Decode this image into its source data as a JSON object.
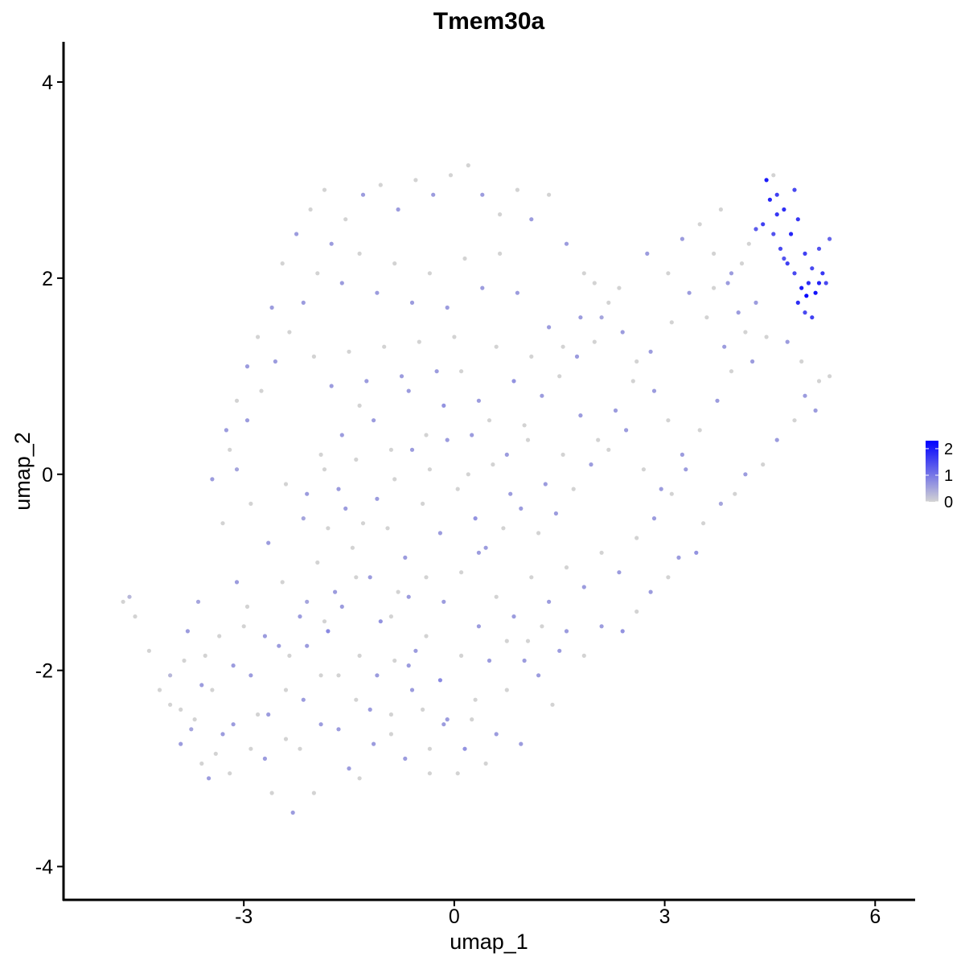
{
  "chart_data": {
    "type": "scatter",
    "title": "Tmem30a",
    "xlabel": "umap_1",
    "ylabel": "umap_2",
    "xlim": [
      -5.57,
      6.57
    ],
    "ylim": [
      -4.34,
      4.41
    ],
    "x_ticks": [
      -3,
      0,
      3,
      6
    ],
    "y_ticks": [
      -4,
      -2,
      0,
      2,
      4
    ],
    "x_tick_labels": [
      "-3",
      "0",
      "3",
      "6"
    ],
    "y_tick_labels": [
      "-4",
      "-2",
      "0",
      "2",
      "4"
    ],
    "grid": false,
    "legend": {
      "placement": "right",
      "type": "colorbar",
      "min": 0,
      "max": 2.3,
      "ticks": [
        0,
        1,
        2
      ],
      "tick_labels": [
        "0",
        "1",
        "2"
      ],
      "color_low": "#d3d3d3",
      "color_high": "#0000ff"
    },
    "point_color_low": "#d3d3d3",
    "point_color_high": "#0000ff",
    "note_expression": "expression 0 = grey; positive values shaded lilac to blue",
    "points": [
      [
        -4.72,
        -1.3,
        0
      ],
      [
        -4.63,
        -1.25,
        0.3
      ],
      [
        -4.55,
        -1.45,
        0
      ],
      [
        -4.35,
        -1.8,
        0
      ],
      [
        -4.2,
        -2.2,
        0
      ],
      [
        -4.05,
        -2.05,
        0.3
      ],
      [
        -3.9,
        -2.4,
        0
      ],
      [
        -3.75,
        -2.6,
        0.5
      ],
      [
        -3.6,
        -2.95,
        0
      ],
      [
        -3.5,
        -3.1,
        0.6
      ],
      [
        -3.8,
        -1.6,
        0.6
      ],
      [
        -3.65,
        -1.3,
        0.5
      ],
      [
        -3.55,
        -1.85,
        0
      ],
      [
        -3.45,
        -2.2,
        0
      ],
      [
        -3.3,
        -2.65,
        0.6
      ],
      [
        -3.2,
        -3.05,
        0
      ],
      [
        -3.1,
        -1.1,
        0.6
      ],
      [
        -3.0,
        -1.55,
        0
      ],
      [
        -2.9,
        -2.05,
        0.6
      ],
      [
        -2.8,
        -2.45,
        0
      ],
      [
        -2.7,
        -2.9,
        0.6
      ],
      [
        -2.6,
        -3.25,
        0
      ],
      [
        -2.5,
        -1.75,
        0.6
      ],
      [
        -2.4,
        -2.2,
        0
      ],
      [
        -2.3,
        -3.45,
        0.6
      ],
      [
        -2.2,
        -2.8,
        0
      ],
      [
        -2.1,
        -1.3,
        0.5
      ],
      [
        -2.0,
        -3.25,
        0
      ],
      [
        -1.9,
        -2.55,
        0.6
      ],
      [
        -1.8,
        -1.6,
        0.8
      ],
      [
        -1.65,
        -2.05,
        0
      ],
      [
        -1.5,
        -3.0,
        0.6
      ],
      [
        -1.4,
        -1.05,
        0
      ],
      [
        -1.35,
        -3.1,
        0
      ],
      [
        -1.2,
        -2.4,
        0.6
      ],
      [
        -1.05,
        -1.5,
        0.7
      ],
      [
        -0.9,
        -2.65,
        0
      ],
      [
        -0.8,
        -1.2,
        0
      ],
      [
        -0.7,
        -2.9,
        0.6
      ],
      [
        -0.55,
        -1.8,
        0.6
      ],
      [
        -0.45,
        -2.4,
        0
      ],
      [
        -0.35,
        -3.05,
        0
      ],
      [
        -0.2,
        -2.1,
        0.8
      ],
      [
        0.05,
        -3.05,
        0
      ],
      [
        0.15,
        -2.8,
        0.7
      ],
      [
        0.3,
        -2.3,
        0
      ],
      [
        0.45,
        -2.95,
        0
      ],
      [
        0.6,
        -2.65,
        0.6
      ],
      [
        0.75,
        -2.2,
        0
      ],
      [
        0.95,
        -2.75,
        0.6
      ],
      [
        1.05,
        -1.7,
        0
      ],
      [
        1.2,
        -2.05,
        0.6
      ],
      [
        1.4,
        -2.35,
        0
      ],
      [
        1.6,
        -1.6,
        0.6
      ],
      [
        1.85,
        -1.85,
        0
      ],
      [
        2.1,
        -1.55,
        0.6
      ],
      [
        2.4,
        -1.6,
        0.7
      ],
      [
        2.6,
        -1.4,
        0
      ],
      [
        2.8,
        -1.2,
        0.6
      ],
      [
        3.05,
        -1.05,
        0
      ],
      [
        3.2,
        -0.85,
        0.6
      ],
      [
        3.45,
        -0.8,
        0.7
      ],
      [
        3.55,
        -0.5,
        0
      ],
      [
        3.8,
        -0.3,
        0.5
      ],
      [
        4.0,
        -0.2,
        0
      ],
      [
        4.15,
        0.0,
        0.6
      ],
      [
        4.4,
        0.1,
        0
      ],
      [
        4.6,
        0.35,
        0.6
      ],
      [
        4.85,
        0.55,
        0
      ],
      [
        5.0,
        0.8,
        0.6
      ],
      [
        5.2,
        0.95,
        0
      ],
      [
        5.35,
        1.0,
        0
      ],
      [
        5.15,
        0.65,
        0.6
      ],
      [
        4.95,
        1.15,
        0
      ],
      [
        4.75,
        1.35,
        0.6
      ],
      [
        4.45,
        1.4,
        0
      ],
      [
        4.25,
        1.15,
        0.6
      ],
      [
        3.95,
        1.05,
        0
      ],
      [
        3.75,
        0.75,
        0.6
      ],
      [
        3.5,
        0.45,
        0
      ],
      [
        3.25,
        0.2,
        0.6
      ],
      [
        3.05,
        0.55,
        0
      ],
      [
        2.85,
        0.85,
        0.6
      ],
      [
        2.6,
        1.15,
        0
      ],
      [
        2.4,
        1.45,
        0.6
      ],
      [
        2.2,
        1.75,
        0
      ],
      [
        2.0,
        1.95,
        0
      ],
      [
        1.8,
        1.6,
        0.6
      ],
      [
        1.55,
        1.3,
        0
      ],
      [
        1.35,
        1.5,
        0.6
      ],
      [
        1.1,
        1.2,
        0
      ],
      [
        0.85,
        0.95,
        0.7
      ],
      [
        0.6,
        1.3,
        0
      ],
      [
        0.35,
        0.75,
        0.6
      ],
      [
        0.1,
        1.05,
        0
      ],
      [
        -0.15,
        0.7,
        0.7
      ],
      [
        -0.4,
        0.4,
        0
      ],
      [
        -0.65,
        0.85,
        0.6
      ],
      [
        -0.9,
        0.25,
        0
      ],
      [
        -1.15,
        0.55,
        0.6
      ],
      [
        -1.4,
        0.15,
        0
      ],
      [
        -1.65,
        -0.15,
        0.6
      ],
      [
        -1.9,
        0.2,
        0
      ],
      [
        -2.15,
        -0.45,
        0.5
      ],
      [
        -2.4,
        -0.1,
        0
      ],
      [
        -2.65,
        -0.7,
        0.6
      ],
      [
        -2.9,
        -0.3,
        0
      ],
      [
        -3.1,
        0.05,
        0.5
      ],
      [
        -3.3,
        -0.5,
        0
      ],
      [
        -3.45,
        -0.05,
        0.6
      ],
      [
        -3.2,
        0.25,
        0
      ],
      [
        -2.95,
        0.55,
        0.6
      ],
      [
        -2.75,
        0.85,
        0
      ],
      [
        -2.55,
        1.15,
        0.6
      ],
      [
        -2.35,
        1.45,
        0
      ],
      [
        -2.15,
        1.75,
        0.6
      ],
      [
        -1.95,
        2.05,
        0
      ],
      [
        -1.75,
        2.35,
        0.6
      ],
      [
        -1.55,
        2.6,
        0
      ],
      [
        -1.3,
        2.85,
        0.6
      ],
      [
        -1.05,
        2.95,
        0
      ],
      [
        -0.8,
        2.7,
        0.6
      ],
      [
        -0.55,
        3.0,
        0
      ],
      [
        -0.3,
        2.85,
        0.6
      ],
      [
        -0.05,
        3.05,
        0
      ],
      [
        0.2,
        3.15,
        0
      ],
      [
        0.4,
        2.85,
        0.6
      ],
      [
        0.65,
        2.65,
        0
      ],
      [
        0.9,
        2.9,
        0
      ],
      [
        1.1,
        2.6,
        0.6
      ],
      [
        1.35,
        2.85,
        0
      ],
      [
        1.6,
        2.35,
        0.6
      ],
      [
        1.85,
        2.05,
        0
      ],
      [
        2.1,
        1.6,
        0.5
      ],
      [
        2.35,
        1.9,
        0
      ],
      [
        2.75,
        2.25,
        0.6
      ],
      [
        3.05,
        2.05,
        0
      ],
      [
        3.25,
        2.4,
        0.6
      ],
      [
        3.5,
        2.55,
        0
      ],
      [
        3.7,
        2.25,
        0
      ],
      [
        3.9,
        1.95,
        0.6
      ],
      [
        4.1,
        2.15,
        0
      ],
      [
        4.3,
        1.75,
        0.6
      ],
      [
        4.15,
        1.45,
        0
      ],
      [
        3.85,
        1.3,
        0.6
      ],
      [
        3.6,
        1.6,
        0
      ],
      [
        3.35,
        1.85,
        0.6
      ],
      [
        3.1,
        1.55,
        0
      ],
      [
        2.8,
        1.25,
        0.6
      ],
      [
        2.55,
        0.95,
        0
      ],
      [
        2.3,
        0.65,
        0.6
      ],
      [
        2.05,
        0.35,
        0
      ],
      [
        1.8,
        0.6,
        0.6
      ],
      [
        1.55,
        0.2,
        0
      ],
      [
        1.3,
        -0.1,
        0.6
      ],
      [
        1.05,
        0.35,
        0
      ],
      [
        0.8,
        -0.2,
        0.6
      ],
      [
        0.55,
        0.1,
        0
      ],
      [
        0.3,
        -0.45,
        0.7
      ],
      [
        0.05,
        -0.15,
        0
      ],
      [
        -0.2,
        -0.6,
        0.6
      ],
      [
        -0.45,
        -0.3,
        0
      ],
      [
        -0.7,
        -0.85,
        0.6
      ],
      [
        -0.95,
        -0.55,
        0
      ],
      [
        -1.2,
        -1.05,
        0.6
      ],
      [
        -1.45,
        -0.75,
        0
      ],
      [
        -1.7,
        -1.2,
        0.6
      ],
      [
        -1.95,
        -0.9,
        0
      ],
      [
        -2.2,
        -1.45,
        0.6
      ],
      [
        -2.45,
        -1.1,
        0
      ],
      [
        -2.7,
        -1.65,
        0.6
      ],
      [
        -2.95,
        -1.35,
        0
      ],
      [
        -3.15,
        -1.95,
        0.6
      ],
      [
        -3.35,
        -1.65,
        0
      ],
      [
        -3.6,
        -2.15,
        0.6
      ],
      [
        -3.85,
        -1.9,
        0
      ],
      [
        -4.05,
        -2.35,
        0
      ],
      [
        -3.9,
        -2.75,
        0.6
      ],
      [
        -3.7,
        -2.5,
        0
      ],
      [
        -3.4,
        -2.85,
        0
      ],
      [
        -3.15,
        -2.55,
        0.6
      ],
      [
        -2.9,
        -2.8,
        0
      ],
      [
        -2.65,
        -2.45,
        0.6
      ],
      [
        -2.4,
        -2.7,
        0
      ],
      [
        -2.15,
        -2.3,
        0.6
      ],
      [
        -1.9,
        -2.05,
        0
      ],
      [
        -1.65,
        -2.6,
        0.6
      ],
      [
        -1.4,
        -2.3,
        0
      ],
      [
        -1.15,
        -2.75,
        0.6
      ],
      [
        -0.9,
        -2.45,
        0
      ],
      [
        -0.65,
        -1.95,
        0.6
      ],
      [
        -0.4,
        -1.65,
        0
      ],
      [
        -0.15,
        -2.55,
        0.6
      ],
      [
        0.1,
        -1.85,
        0
      ],
      [
        0.35,
        -1.55,
        0.6
      ],
      [
        0.6,
        -1.25,
        0
      ],
      [
        0.85,
        -1.45,
        0.6
      ],
      [
        1.1,
        -1.05,
        0
      ],
      [
        1.35,
        -1.3,
        0.6
      ],
      [
        1.6,
        -0.95,
        0
      ],
      [
        1.85,
        -1.15,
        0.6
      ],
      [
        2.1,
        -0.8,
        0
      ],
      [
        2.35,
        -1.0,
        0.6
      ],
      [
        2.6,
        -0.65,
        0
      ],
      [
        2.85,
        -0.45,
        0.6
      ],
      [
        3.1,
        -0.2,
        0
      ],
      [
        3.3,
        0.05,
        0.6
      ],
      [
        -2.6,
        1.7,
        0.6
      ],
      [
        -2.8,
        1.4,
        0
      ],
      [
        -2.95,
        1.1,
        0.6
      ],
      [
        -3.1,
        0.75,
        0
      ],
      [
        -3.25,
        0.45,
        0.6
      ],
      [
        -2.45,
        2.15,
        0
      ],
      [
        -2.25,
        2.45,
        0.6
      ],
      [
        -2.05,
        2.7,
        0
      ],
      [
        -1.85,
        2.9,
        0
      ],
      [
        -1.6,
        1.95,
        0.6
      ],
      [
        -1.35,
        2.25,
        0
      ],
      [
        -1.1,
        1.85,
        0.6
      ],
      [
        -0.85,
        2.15,
        0
      ],
      [
        -0.6,
        1.75,
        0.6
      ],
      [
        -0.35,
        2.05,
        0
      ],
      [
        -0.1,
        1.7,
        0.6
      ],
      [
        0.15,
        2.2,
        0
      ],
      [
        0.4,
        1.9,
        0.6
      ],
      [
        0.65,
        2.25,
        0
      ],
      [
        0.9,
        1.85,
        0.6
      ],
      [
        -2.0,
        1.2,
        0
      ],
      [
        -1.75,
        0.9,
        0.6
      ],
      [
        -1.5,
        1.25,
        0
      ],
      [
        -1.25,
        0.95,
        0.6
      ],
      [
        -1.0,
        1.3,
        0
      ],
      [
        -0.75,
        1.0,
        0.6
      ],
      [
        -0.5,
        1.35,
        0
      ],
      [
        -0.25,
        1.05,
        0.6
      ],
      [
        0.0,
        1.4,
        0
      ],
      [
        0.25,
        0.4,
        0.6
      ],
      [
        0.5,
        0.55,
        0
      ],
      [
        0.75,
        0.2,
        0.6
      ],
      [
        1.0,
        0.5,
        0
      ],
      [
        1.25,
        0.8,
        0.6
      ],
      [
        1.5,
        1.0,
        0
      ],
      [
        1.75,
        1.2,
        0.6
      ],
      [
        2.0,
        1.35,
        0
      ],
      [
        -2.1,
        -0.2,
        0.6
      ],
      [
        -1.85,
        0.05,
        0
      ],
      [
        -1.6,
        0.4,
        0.6
      ],
      [
        -1.35,
        0.7,
        0
      ],
      [
        -1.1,
        -0.25,
        0.6
      ],
      [
        -0.85,
        -0.05,
        0
      ],
      [
        -0.6,
        0.25,
        0.6
      ],
      [
        -0.35,
        0.05,
        0
      ],
      [
        -0.1,
        0.35,
        0.6
      ],
      [
        0.2,
        0.0,
        0
      ],
      [
        0.45,
        -0.75,
        0.6
      ],
      [
        0.7,
        -0.55,
        0
      ],
      [
        0.95,
        -0.35,
        0.6
      ],
      [
        1.2,
        -0.6,
        0
      ],
      [
        1.45,
        -0.4,
        0.6
      ],
      [
        1.7,
        -0.15,
        0
      ],
      [
        1.95,
        0.1,
        0.6
      ],
      [
        2.2,
        0.25,
        0
      ],
      [
        2.45,
        0.45,
        0.6
      ],
      [
        2.7,
        0.05,
        0
      ],
      [
        2.95,
        -0.15,
        0.6
      ],
      [
        -0.9,
        -1.45,
        0
      ],
      [
        -0.65,
        -1.25,
        0.6
      ],
      [
        -0.4,
        -1.05,
        0
      ],
      [
        -0.15,
        -1.3,
        0.6
      ],
      [
        0.1,
        -1.0,
        0
      ],
      [
        0.35,
        -0.8,
        0.6
      ],
      [
        -1.8,
        -0.55,
        0
      ],
      [
        -1.55,
        -0.35,
        0.6
      ],
      [
        -1.3,
        -0.5,
        0
      ],
      [
        -2.35,
        -1.85,
        0
      ],
      [
        -2.1,
        -1.75,
        0.6
      ],
      [
        -1.85,
        -1.5,
        0
      ],
      [
        -1.6,
        -1.35,
        0.6
      ],
      [
        -1.35,
        -1.85,
        0
      ],
      [
        -1.1,
        -2.05,
        0.6
      ],
      [
        -0.85,
        -1.9,
        0
      ],
      [
        -0.6,
        -2.2,
        0.6
      ],
      [
        -0.35,
        -2.8,
        0
      ],
      [
        -0.1,
        -2.5,
        0.6
      ],
      [
        0.25,
        -2.5,
        0
      ],
      [
        0.5,
        -1.9,
        0.6
      ],
      [
        0.75,
        -1.7,
        0
      ],
      [
        1.0,
        -1.9,
        0.6
      ],
      [
        1.25,
        -1.55,
        0
      ],
      [
        1.5,
        -1.8,
        0.6
      ],
      [
        4.4,
        2.55,
        1.6
      ],
      [
        4.5,
        2.8,
        1.9
      ],
      [
        4.55,
        2.45,
        1.4
      ],
      [
        4.6,
        2.65,
        1.7
      ],
      [
        4.65,
        2.3,
        1.5
      ],
      [
        4.7,
        2.7,
        1.8
      ],
      [
        4.75,
        2.15,
        1.6
      ],
      [
        4.8,
        2.45,
        1.9
      ],
      [
        4.85,
        2.05,
        1.5
      ],
      [
        4.9,
        2.6,
        1.7
      ],
      [
        4.95,
        1.9,
        2.0
      ],
      [
        5.0,
        2.25,
        1.6
      ],
      [
        5.02,
        1.82,
        2.3
      ],
      [
        5.05,
        1.95,
        1.8
      ],
      [
        5.1,
        2.1,
        1.5
      ],
      [
        5.15,
        1.85,
        2.1
      ],
      [
        5.2,
        2.3,
        1.4
      ],
      [
        5.25,
        2.05,
        1.7
      ],
      [
        5.3,
        1.95,
        1.5
      ],
      [
        5.35,
        2.4,
        1.2
      ],
      [
        4.45,
        3.0,
        2.0
      ],
      [
        4.6,
        2.85,
        1.6
      ],
      [
        4.85,
        2.9,
        1.5
      ],
      [
        5.1,
        1.6,
        1.6
      ],
      [
        4.9,
        1.75,
        1.8
      ],
      [
        4.3,
        2.5,
        1.3
      ],
      [
        4.7,
        2.2,
        1.4
      ],
      [
        5.0,
        1.65,
        1.5
      ],
      [
        5.2,
        1.95,
        1.9
      ],
      [
        4.55,
        3.05,
        0
      ],
      [
        3.95,
        2.05,
        0.6
      ],
      [
        4.2,
        2.35,
        0
      ],
      [
        3.8,
        2.7,
        0
      ],
      [
        4.05,
        1.65,
        0.6
      ],
      [
        3.7,
        1.9,
        0
      ]
    ]
  }
}
